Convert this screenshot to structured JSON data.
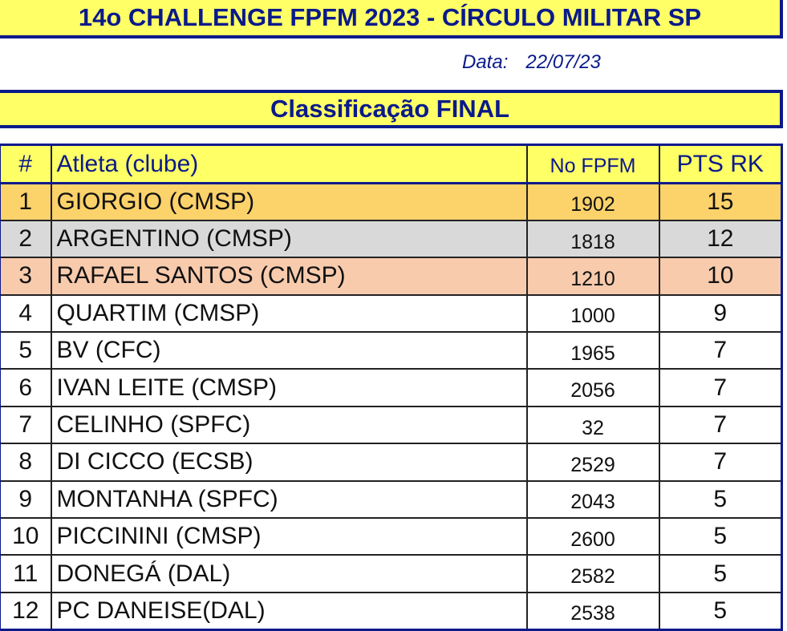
{
  "title": "14o CHALLENGE FPFM 2023 - CÍRCULO MILITAR SP",
  "date_label": "Data:",
  "date": "22/07/23",
  "subtitle": "Classificação FINAL",
  "headers": {
    "rank": "#",
    "athlete": "Atleta (clube)",
    "fpfm": "No FPFM",
    "pts": "PTS RK"
  },
  "rows": [
    {
      "rank": "1",
      "athlete": "GIORGIO (CMSP)",
      "fpfm": "1902",
      "pts": "15"
    },
    {
      "rank": "2",
      "athlete": "ARGENTINO (CMSP)",
      "fpfm": "1818",
      "pts": "12"
    },
    {
      "rank": "3",
      "athlete": "RAFAEL SANTOS (CMSP)",
      "fpfm": "1210",
      "pts": "10"
    },
    {
      "rank": "4",
      "athlete": "QUARTIM (CMSP)",
      "fpfm": "1000",
      "pts": "9"
    },
    {
      "rank": "5",
      "athlete": "BV (CFC)",
      "fpfm": "1965",
      "pts": "7"
    },
    {
      "rank": "6",
      "athlete": "IVAN LEITE (CMSP)",
      "fpfm": "2056",
      "pts": "7"
    },
    {
      "rank": "7",
      "athlete": "CELINHO (SPFC)",
      "fpfm": "32",
      "pts": "7"
    },
    {
      "rank": "8",
      "athlete": "DI CICCO (ECSB)",
      "fpfm": "2529",
      "pts": "7"
    },
    {
      "rank": "9",
      "athlete": "MONTANHA (SPFC)",
      "fpfm": "2043",
      "pts": "5"
    },
    {
      "rank": "10",
      "athlete": "PICCININI (CMSP)",
      "fpfm": "2600",
      "pts": "5"
    },
    {
      "rank": "11",
      "athlete": "DONEGÁ (DAL)",
      "fpfm": "2582",
      "pts": "5"
    },
    {
      "rank": "12",
      "athlete": "PC DANEISE(DAL)",
      "fpfm": "2538",
      "pts": "5"
    }
  ]
}
